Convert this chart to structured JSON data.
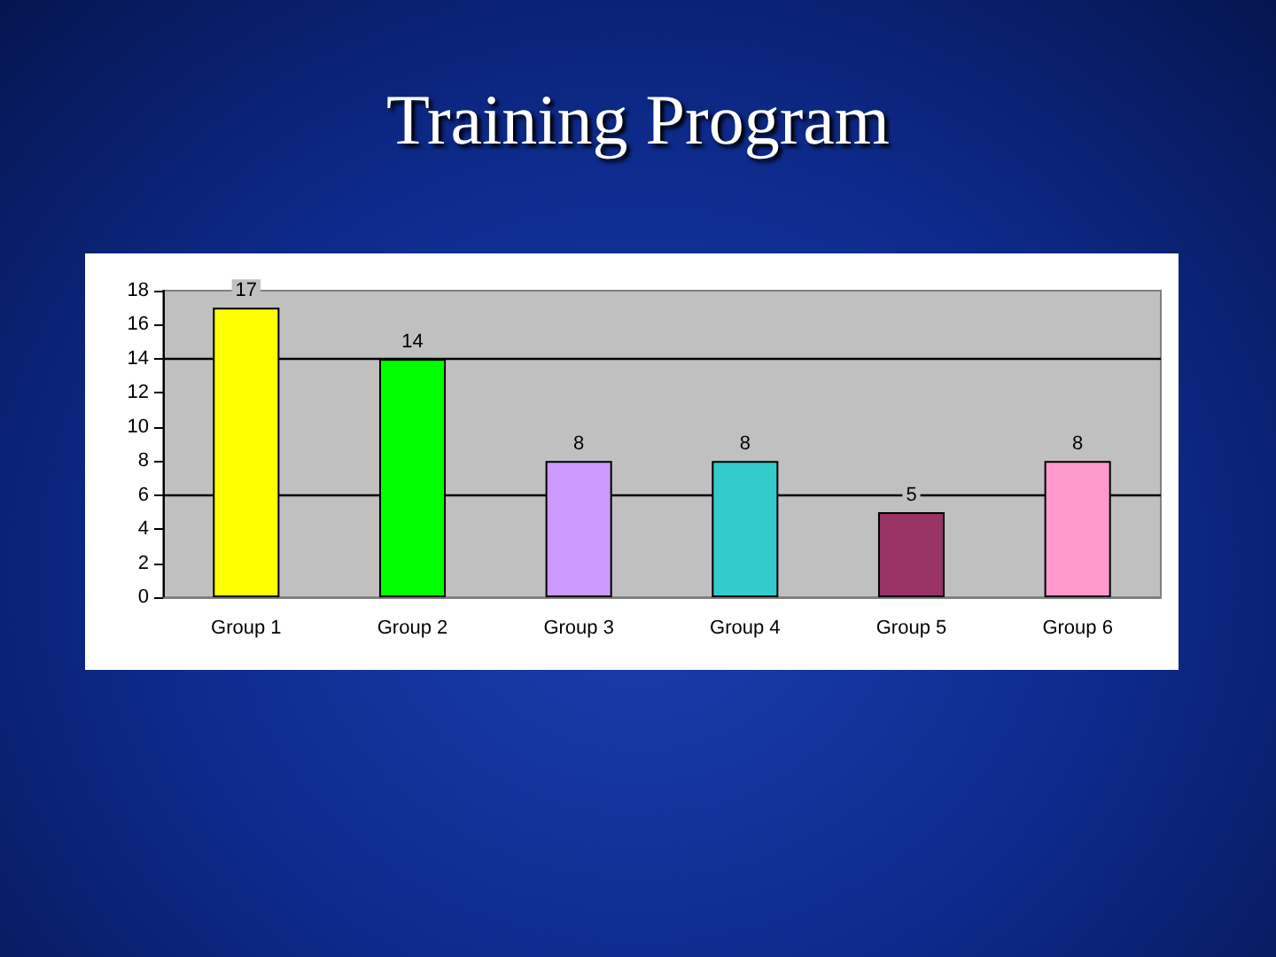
{
  "chart_data": {
    "type": "bar",
    "title": "Training Program",
    "categories": [
      "Group 1",
      "Group 2",
      "Group 3",
      "Group 4",
      "Group 5",
      "Group 6"
    ],
    "values": [
      17,
      14,
      8,
      8,
      5,
      8
    ],
    "colors": [
      "#ffff00",
      "#00ff00",
      "#cc99ff",
      "#33cccc",
      "#993366",
      "#ff99cc"
    ],
    "ylim": [
      0,
      18
    ],
    "yticks": [
      0,
      2,
      4,
      6,
      8,
      10,
      12,
      14,
      16,
      18
    ],
    "data_labels": true,
    "grid": false,
    "ref_lines": [
      {
        "axis": "y",
        "value": 14,
        "label": null,
        "color": "#000000",
        "line_style": "solid"
      },
      {
        "axis": "y",
        "value": 6,
        "label": null,
        "color": "#000000",
        "line_style": "solid"
      }
    ]
  }
}
